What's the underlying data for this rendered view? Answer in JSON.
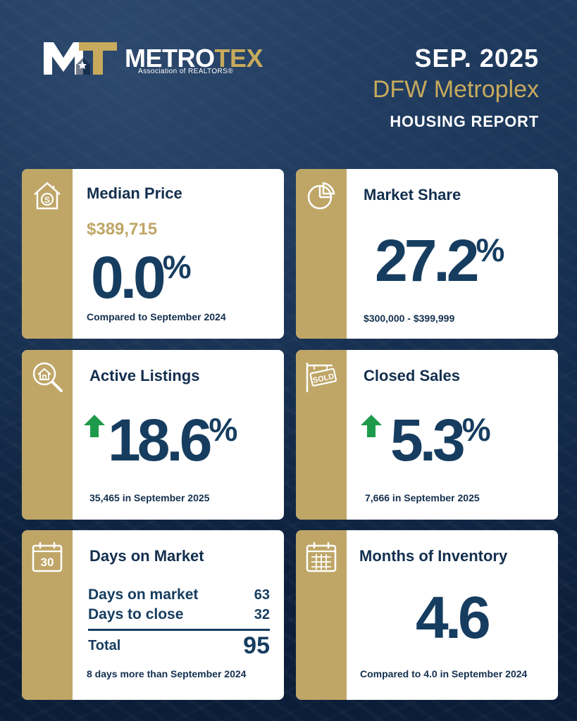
{
  "header": {
    "logo_word_metro": "METRO",
    "logo_word_tex": "TEX",
    "logo_sub": "Association of REALTORS®",
    "date": "SEP. 2025",
    "region": "DFW Metroplex",
    "report": "HOUSING REPORT"
  },
  "colors": {
    "navy_bg": "#0c1f3b",
    "gold": "#bfa667",
    "navy_text": "#163d60",
    "up_arrow": "#1e9b4a"
  },
  "cards": {
    "median_price": {
      "icon": "house-dollar-icon",
      "title": "Median Price",
      "price": "$389,715",
      "change_value": "0.0",
      "change_unit": "%",
      "foot": "Compared to September 2024"
    },
    "market_share": {
      "icon": "pie-chart-icon",
      "title": "Market Share",
      "value": "27.2",
      "unit": "%",
      "foot": "$300,000 - $399,999"
    },
    "active_listings": {
      "icon": "house-magnifier-icon",
      "title": "Active Listings",
      "trend": "up-arrow-icon",
      "value": "18.6",
      "unit": "%",
      "foot": "35,465 in September 2025"
    },
    "closed_sales": {
      "icon": "sold-sign-icon",
      "title": "Closed Sales",
      "trend": "up-arrow-icon",
      "value": "5.3",
      "unit": "%",
      "foot": "7,666 in September 2025"
    },
    "days_on_market": {
      "icon": "calendar-30-icon",
      "icon_text": "30",
      "title": "Days on Market",
      "rows": [
        {
          "label": "Days on market",
          "value": "63"
        },
        {
          "label": "Days to close",
          "value": "32"
        }
      ],
      "total_label": "Total",
      "total_value": "95",
      "foot": "8 days more than September 2024"
    },
    "months_inventory": {
      "icon": "calendar-grid-icon",
      "title": "Months of Inventory",
      "value": "4.6",
      "foot": "Compared to 4.0 in September 2024"
    }
  }
}
